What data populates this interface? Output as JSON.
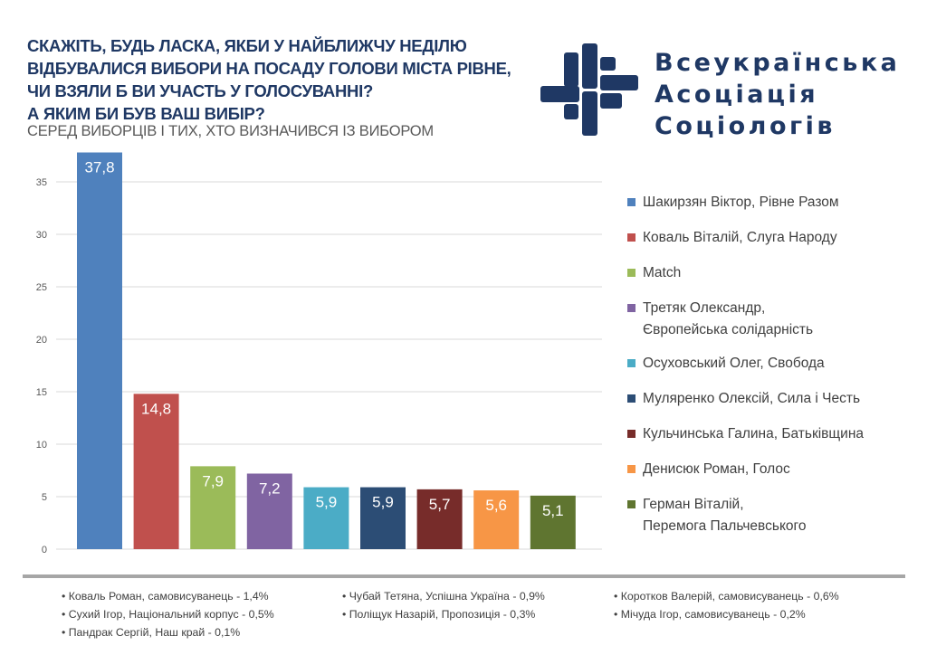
{
  "title_lines": [
    "СКАЖІТЬ, БУДЬ ЛАСКА, ЯКБИ У НАЙБЛИЖЧУ НЕДІЛЮ",
    "ВІДБУВАЛИСЯ ВИБОРИ НА ПОСАДУ ГОЛОВИ МІСТА РІВНЕ,",
    "ЧИ ВЗЯЛИ Б ВИ УЧАСТЬ У ГОЛОСУВАННІ?",
    "А ЯКИМ БИ БУВ ВАШ ВИБІР?"
  ],
  "subtitle": "СЕРЕД ВИБОРЦІВ І ТИХ, ХТО ВИЗНАЧИВСЯ ІЗ ВИБОРОМ",
  "logo": {
    "lines": [
      "Всеукраїнська",
      "Асоціація",
      "Соціологів"
    ],
    "color": "#1f3864"
  },
  "chart_data": {
    "type": "bar",
    "ylim": [
      0,
      37.8
    ],
    "yticks": [
      0,
      5,
      10,
      15,
      20,
      25,
      30,
      35
    ],
    "grid": true,
    "legend_placement": "right",
    "series": [
      {
        "name": "Шакирзян Віктор, Рівне Разом",
        "value": 37.8,
        "label": "37,8",
        "color": "#4f81bd"
      },
      {
        "name": "Коваль Віталій, Слуга Народу",
        "value": 14.8,
        "label": "14,8",
        "color": "#c0504d"
      },
      {
        "name": "Match",
        "value": 7.9,
        "label": "7,9",
        "color": "#9bbb59"
      },
      {
        "name": "Третяк Олександр, Європейська солідарність",
        "value": 7.2,
        "label": "7,2",
        "color": "#8064a2"
      },
      {
        "name": "Осуховський Олег, Свобода",
        "value": 5.9,
        "label": "5,9",
        "color": "#4bacc6"
      },
      {
        "name": "Муляренко Олексій, Сила і Честь",
        "value": 5.9,
        "label": "5,9",
        "color": "#2c4d75"
      },
      {
        "name": "Кульчинська Галина, Батьківщина",
        "value": 5.7,
        "label": "5,7",
        "color": "#772c2a"
      },
      {
        "name": "Денисюк Роман, Голос",
        "value": 5.6,
        "label": "5,6",
        "color": "#f79646"
      },
      {
        "name": "Герман Віталій, Перемога Пальчевського",
        "value": 5.1,
        "label": "5,1",
        "color": "#5f7530"
      }
    ]
  },
  "legend": [
    [
      "Шакирзян Віктор, Рівне Разом"
    ],
    [
      "Коваль Віталій, Слуга Народу"
    ],
    [
      "Match"
    ],
    [
      "Третяк Олександр,",
      "Європейська солідарність"
    ],
    [
      "Осуховський Олег, Свобода"
    ],
    [
      "Муляренко Олексій, Сила і Честь"
    ],
    [
      "Кульчинська Галина, Батьківщина"
    ],
    [
      "Денисюк Роман, Голос"
    ],
    [
      "Герман Віталій,",
      "Перемога Пальчевського"
    ]
  ],
  "notes": [
    "• Коваль Роман, самовисуванець - 1,4%",
    "• Чубай Тетяна, Успішна Україна - 0,9%",
    "• Коротков Валерій, самовисуванець - 0,6%",
    "• Сухий Ігор, Національний корпус - 0,5%",
    "• Поліщук Назарій, Пропозиція - 0,3%",
    "• Мічуда Ігор, самовисуванець - 0,2%",
    "• Пандрак Сергій, Наш край - 0,1%"
  ]
}
